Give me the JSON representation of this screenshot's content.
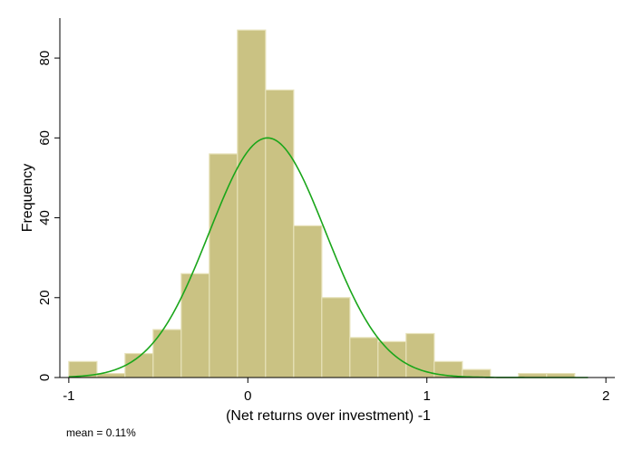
{
  "chart_data": {
    "type": "histogram",
    "xlabel": "(Net returns over investment) -1",
    "ylabel": "Frequency",
    "xlim": [
      -1.05,
      2.05
    ],
    "ylim": [
      0,
      90
    ],
    "x_ticks": [
      -1,
      0,
      1,
      2
    ],
    "y_ticks": [
      0,
      20,
      40,
      60,
      80
    ],
    "grid": false,
    "bin_width": 0.157,
    "bins": [
      {
        "start": -1.0,
        "count": 4
      },
      {
        "start": -0.843,
        "count": 1
      },
      {
        "start": -0.686,
        "count": 6
      },
      {
        "start": -0.529,
        "count": 12
      },
      {
        "start": -0.372,
        "count": 26
      },
      {
        "start": -0.215,
        "count": 56
      },
      {
        "start": -0.058,
        "count": 87
      },
      {
        "start": 0.099,
        "count": 72
      },
      {
        "start": 0.256,
        "count": 38
      },
      {
        "start": 0.413,
        "count": 20
      },
      {
        "start": 0.57,
        "count": 10
      },
      {
        "start": 0.727,
        "count": 9
      },
      {
        "start": 0.884,
        "count": 11
      },
      {
        "start": 1.041,
        "count": 4
      },
      {
        "start": 1.198,
        "count": 2
      },
      {
        "start": 1.355,
        "count": 0
      },
      {
        "start": 1.512,
        "count": 1
      },
      {
        "start": 1.669,
        "count": 1
      }
    ],
    "normal_curve": {
      "mean": 0.11,
      "sd": 0.325,
      "peak": 60,
      "x_range": [
        -1.0,
        1.9
      ]
    },
    "colors": {
      "bar_fill": "#cac283",
      "bar_stroke": "#e6e1b8",
      "curve": "#1aa61a"
    }
  },
  "note": "mean = 0.11%"
}
